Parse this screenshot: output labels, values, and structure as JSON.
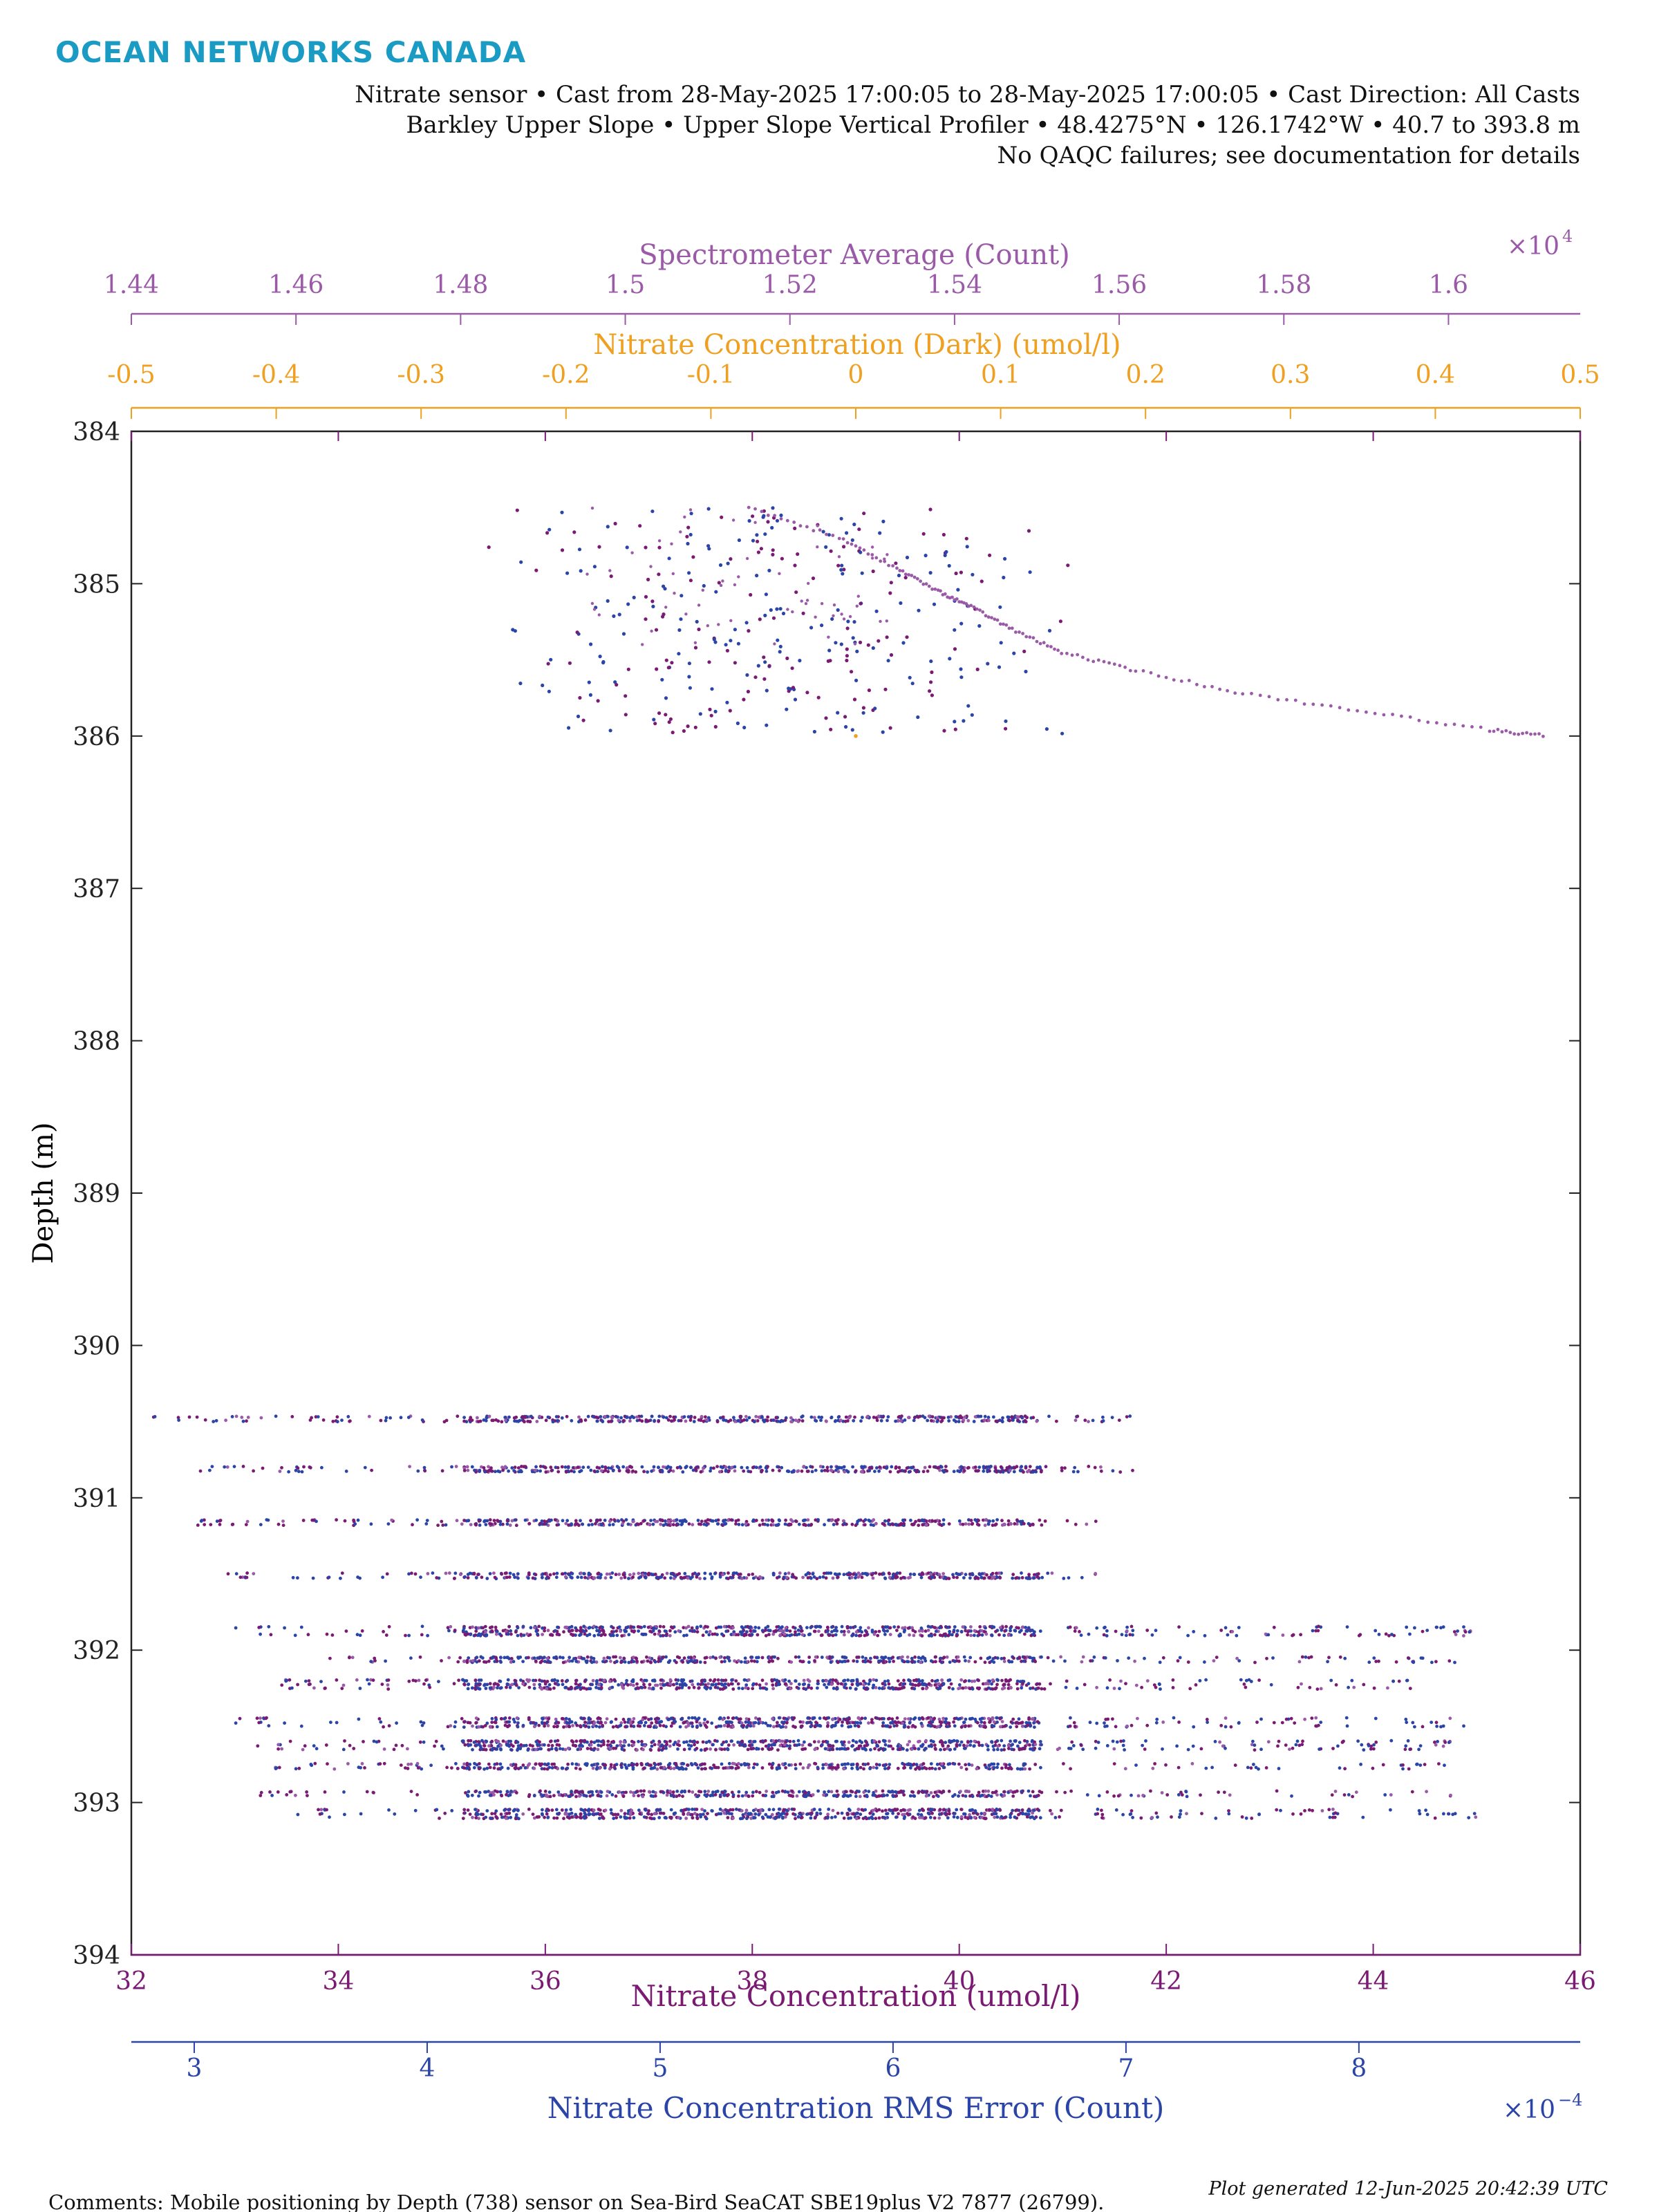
{
  "brand": {
    "name": "OCEAN NETWORKS CANADA",
    "color": "#1a9bc4"
  },
  "header": {
    "line1": "Nitrate sensor • Cast from 28-May-2025 17:00:05 to 28-May-2025 17:00:05 • Cast Direction: All Casts",
    "line2": "Barkley Upper Slope • Upper Slope Vertical Profiler • 48.4275°N • 126.1742°W • 40.7 to 393.8 m",
    "line3": "No QAQC failures; see documentation for details"
  },
  "footer": {
    "comments": "Comments: Mobile positioning by Depth (738) sensor on Sea-Bird SeaCAT SBE19plus V2 7877 (26799).",
    "generated": "Plot generated 12-Jun-2025 20:42:39 UTC"
  },
  "chart_data": {
    "type": "scatter",
    "title": "",
    "ylabel": "Depth (m)",
    "ylim": [
      384,
      394
    ],
    "y_reversed": true,
    "y_ticks": [
      "384",
      "385",
      "386",
      "387",
      "388",
      "389",
      "390",
      "391",
      "392",
      "393",
      "394"
    ],
    "axes": [
      {
        "id": "nitrate",
        "position": "bottom",
        "label": "Nitrate Concentration (umol/l)",
        "color": "#7a1a73",
        "range": [
          32,
          46
        ],
        "ticks": [
          "32",
          "34",
          "36",
          "38",
          "40",
          "42",
          "44",
          "46"
        ]
      },
      {
        "id": "rms",
        "position": "bottom-secondary",
        "label": "Nitrate Concentration RMS Error (Count)",
        "color": "#2a44a8",
        "range": [
          0.000273,
          0.000895
        ],
        "ticks": [
          "3",
          "4",
          "5",
          "6",
          "7",
          "8"
        ],
        "multiplier": "×10",
        "exponent": "−4"
      },
      {
        "id": "dark",
        "position": "top",
        "label": "Nitrate Concentration (Dark) (umol/l)",
        "color": "#f0a020",
        "range": [
          -0.5,
          0.5
        ],
        "ticks": [
          "-0.5",
          "-0.4",
          "-0.3",
          "-0.2",
          "-0.1",
          "0",
          "0.1",
          "0.2",
          "0.3",
          "0.4",
          "0.5"
        ]
      },
      {
        "id": "spectrometer",
        "position": "top-secondary",
        "label": "Spectrometer Average (Count)",
        "color": "#9b5aa8",
        "range": [
          14400,
          16160
        ],
        "ticks": [
          "1.44",
          "1.46",
          "1.48",
          "1.5",
          "1.52",
          "1.54",
          "1.56",
          "1.58",
          "1.6"
        ],
        "multiplier": "×10",
        "exponent": "4"
      }
    ],
    "series_colors": {
      "nitrate": "#7a1a73",
      "rms": "#2a44a8",
      "spectrometer": "#9b5aa8",
      "dark": "#f0a020"
    },
    "upper_cluster": {
      "depth_range": [
        384.5,
        386.0
      ],
      "nitrate_range": [
        35.5,
        41.0
      ]
    },
    "spectrometer_trend": [
      {
        "spectrometer": 15150,
        "depth": 384.5
      },
      {
        "spectrometer": 15260,
        "depth": 384.7
      },
      {
        "spectrometer": 15330,
        "depth": 384.9
      },
      {
        "spectrometer": 15380,
        "depth": 385.05
      },
      {
        "spectrometer": 15420,
        "depth": 385.15
      },
      {
        "spectrometer": 15470,
        "depth": 385.3
      },
      {
        "spectrometer": 15530,
        "depth": 385.45
      },
      {
        "spectrometer": 15620,
        "depth": 385.57
      },
      {
        "spectrometer": 15750,
        "depth": 385.72
      },
      {
        "spectrometer": 15900,
        "depth": 385.84
      },
      {
        "spectrometer": 16050,
        "depth": 385.96
      },
      {
        "spectrometer": 16120,
        "depth": 386.0
      }
    ],
    "lower_bands": [
      {
        "depth": 390.47,
        "nitrate_min": 32.2,
        "nitrate_max": 41.8,
        "rows": 2
      },
      {
        "depth": 390.8,
        "nitrate_min": 32.4,
        "nitrate_max": 41.7,
        "rows": 2
      },
      {
        "depth": 391.15,
        "nitrate_min": 32.6,
        "nitrate_max": 41.6,
        "rows": 2
      },
      {
        "depth": 391.5,
        "nitrate_min": 32.9,
        "nitrate_max": 41.5,
        "rows": 2
      },
      {
        "depth": 391.85,
        "nitrate_min": 33.0,
        "nitrate_max": 45.0,
        "rows": 3
      },
      {
        "depth": 392.05,
        "nitrate_min": 33.9,
        "nitrate_max": 44.8,
        "rows": 2
      },
      {
        "depth": 392.2,
        "nitrate_min": 33.4,
        "nitrate_max": 44.6,
        "rows": 3
      },
      {
        "depth": 392.45,
        "nitrate_min": 33.0,
        "nitrate_max": 45.0,
        "rows": 3
      },
      {
        "depth": 392.6,
        "nitrate_min": 33.2,
        "nitrate_max": 44.8,
        "rows": 3
      },
      {
        "depth": 392.75,
        "nitrate_min": 33.3,
        "nitrate_max": 44.7,
        "rows": 2
      },
      {
        "depth": 392.93,
        "nitrate_min": 33.2,
        "nitrate_max": 45.0,
        "rows": 2
      },
      {
        "depth": 393.05,
        "nitrate_min": 33.6,
        "nitrate_max": 45.1,
        "rows": 3
      }
    ]
  }
}
